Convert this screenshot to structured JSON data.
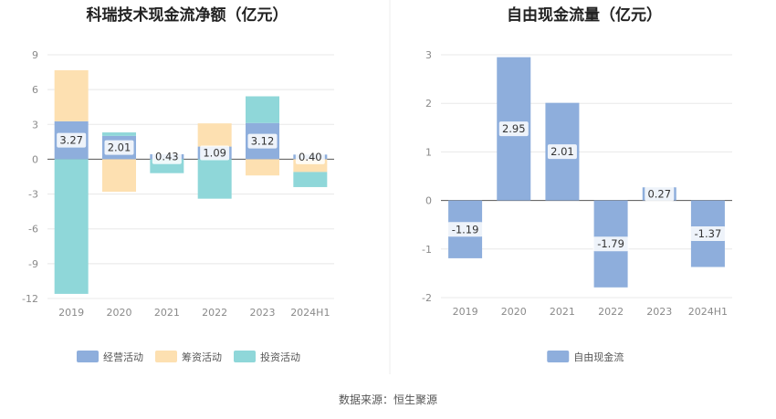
{
  "source": "数据来源：恒生聚源",
  "chart_data": [
    {
      "type": "bar",
      "stacked": true,
      "title": "科瑞技术现金流净额（亿元）",
      "categories": [
        "2019",
        "2020",
        "2021",
        "2022",
        "2023",
        "2024H1"
      ],
      "yticks": [
        "9",
        "6",
        "3",
        "0",
        "-3",
        "-6",
        "-9",
        "-12"
      ],
      "ylim": [
        -12,
        9
      ],
      "grid": true,
      "legend_position": "bottom",
      "series": [
        {
          "name": "经营活动",
          "color": "#8eaedc",
          "values": [
            3.27,
            2.01,
            0.43,
            1.09,
            3.12,
            0.4
          ],
          "labels": [
            "3.27",
            "2.01",
            "0.43",
            "1.09",
            "3.12",
            "0.40"
          ]
        },
        {
          "name": "筹资活动",
          "color": "#fde0b1",
          "values": [
            4.4,
            -2.8,
            0.0,
            2.0,
            -1.4,
            -1.1
          ]
        },
        {
          "name": "投资活动",
          "color": "#8fd7d9",
          "values": [
            -11.6,
            0.3,
            -1.2,
            -3.4,
            2.3,
            -1.3
          ]
        }
      ]
    },
    {
      "type": "bar",
      "title": "自由现金流量（亿元）",
      "categories": [
        "2019",
        "2020",
        "2021",
        "2022",
        "2023",
        "2024H1"
      ],
      "yticks": [
        "3",
        "2",
        "1",
        "0",
        "-1",
        "-2"
      ],
      "ylim": [
        -2,
        3
      ],
      "grid": true,
      "legend_position": "bottom",
      "series": [
        {
          "name": "自由现金流",
          "color": "#8eaedc",
          "values": [
            -1.19,
            2.95,
            2.01,
            -1.79,
            0.27,
            -1.37
          ],
          "labels": [
            "-1.19",
            "2.95",
            "2.01",
            "-1.79",
            "0.27",
            "-1.37"
          ]
        }
      ]
    }
  ]
}
